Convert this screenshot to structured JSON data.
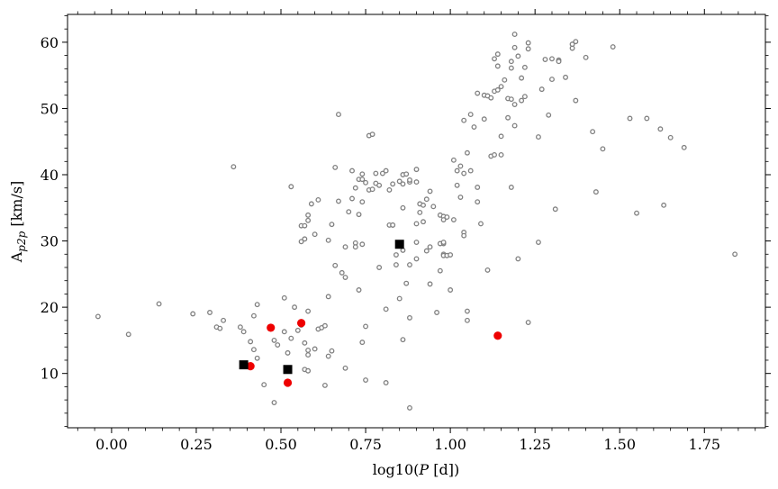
{
  "chart_data": {
    "type": "scatter",
    "xlabel_main": "log10(",
    "xlabel_var": "P",
    "xlabel_unit": " [d])",
    "ylabel_main": "A",
    "ylabel_sub": "p2p",
    "ylabel_unit": " [km/s]",
    "xlim": [
      -0.13,
      1.93
    ],
    "ylim": [
      1.8,
      64.2
    ],
    "x_ticks": [
      0.0,
      0.25,
      0.5,
      0.75,
      1.0,
      1.25,
      1.5,
      1.75
    ],
    "x_tick_labels": [
      "0.00",
      "0.25",
      "0.50",
      "0.75",
      "1.00",
      "1.25",
      "1.50",
      "1.75"
    ],
    "y_ticks": [
      10,
      20,
      30,
      40,
      50,
      60
    ],
    "y_tick_labels": [
      "10",
      "20",
      "30",
      "40",
      "50",
      "60"
    ],
    "grid": false,
    "legend": "none",
    "colors": {
      "open": "#808080",
      "red": "#ee0000",
      "black": "#000000"
    },
    "series": [
      {
        "marker": "open-circle",
        "points": [
          [
            -0.04,
            18.6
          ],
          [
            0.05,
            15.9
          ],
          [
            0.14,
            20.5
          ],
          [
            0.24,
            19.0
          ],
          [
            0.29,
            19.2
          ],
          [
            0.31,
            17.0
          ],
          [
            0.32,
            16.8
          ],
          [
            0.33,
            18.0
          ],
          [
            0.36,
            41.2
          ],
          [
            0.38,
            17.0
          ],
          [
            0.39,
            16.3
          ],
          [
            0.41,
            14.8
          ],
          [
            0.42,
            18.7
          ],
          [
            0.42,
            13.6
          ],
          [
            0.43,
            20.4
          ],
          [
            0.43,
            12.3
          ],
          [
            0.45,
            8.3
          ],
          [
            0.48,
            15.0
          ],
          [
            0.48,
            5.6
          ],
          [
            0.49,
            14.3
          ],
          [
            0.51,
            21.4
          ],
          [
            0.51,
            16.3
          ],
          [
            0.52,
            13.1
          ],
          [
            0.53,
            15.3
          ],
          [
            0.53,
            38.2
          ],
          [
            0.54,
            20.0
          ],
          [
            0.55,
            16.5
          ],
          [
            0.56,
            17.3
          ],
          [
            0.56,
            29.9
          ],
          [
            0.56,
            32.3
          ],
          [
            0.57,
            32.3
          ],
          [
            0.57,
            30.3
          ],
          [
            0.57,
            14.6
          ],
          [
            0.57,
            10.6
          ],
          [
            0.58,
            33.9
          ],
          [
            0.58,
            33.1
          ],
          [
            0.58,
            19.4
          ],
          [
            0.58,
            13.5
          ],
          [
            0.58,
            12.8
          ],
          [
            0.58,
            10.4
          ],
          [
            0.59,
            35.6
          ],
          [
            0.6,
            31.0
          ],
          [
            0.6,
            13.7
          ],
          [
            0.61,
            36.2
          ],
          [
            0.61,
            16.7
          ],
          [
            0.62,
            16.9
          ],
          [
            0.63,
            17.2
          ],
          [
            0.63,
            8.2
          ],
          [
            0.64,
            30.1
          ],
          [
            0.64,
            21.6
          ],
          [
            0.64,
            12.6
          ],
          [
            0.65,
            32.5
          ],
          [
            0.65,
            13.4
          ],
          [
            0.66,
            26.3
          ],
          [
            0.66,
            41.1
          ],
          [
            0.67,
            49.1
          ],
          [
            0.67,
            36.0
          ],
          [
            0.68,
            25.2
          ],
          [
            0.69,
            29.1
          ],
          [
            0.69,
            24.5
          ],
          [
            0.69,
            10.8
          ],
          [
            0.7,
            34.4
          ],
          [
            0.71,
            40.6
          ],
          [
            0.71,
            36.4
          ],
          [
            0.72,
            38.0
          ],
          [
            0.72,
            29.7
          ],
          [
            0.72,
            29.1
          ],
          [
            0.73,
            39.3
          ],
          [
            0.73,
            34.0
          ],
          [
            0.73,
            22.6
          ],
          [
            0.74,
            39.3
          ],
          [
            0.74,
            40.1
          ],
          [
            0.74,
            35.9
          ],
          [
            0.74,
            29.5
          ],
          [
            0.74,
            14.7
          ],
          [
            0.75,
            38.8
          ],
          [
            0.75,
            17.1
          ],
          [
            0.75,
            9.0
          ],
          [
            0.76,
            45.9
          ],
          [
            0.76,
            37.7
          ],
          [
            0.77,
            46.1
          ],
          [
            0.77,
            37.8
          ],
          [
            0.78,
            40.2
          ],
          [
            0.78,
            38.7
          ],
          [
            0.79,
            38.4
          ],
          [
            0.79,
            26.0
          ],
          [
            0.8,
            40.2
          ],
          [
            0.81,
            40.6
          ],
          [
            0.81,
            19.7
          ],
          [
            0.81,
            8.6
          ],
          [
            0.82,
            37.7
          ],
          [
            0.82,
            32.4
          ],
          [
            0.83,
            32.4
          ],
          [
            0.83,
            38.6
          ],
          [
            0.83,
            32.4
          ],
          [
            0.84,
            26.4
          ],
          [
            0.84,
            27.9
          ],
          [
            0.85,
            21.3
          ],
          [
            0.85,
            39.0
          ],
          [
            0.86,
            40.0
          ],
          [
            0.86,
            38.6
          ],
          [
            0.86,
            35.0
          ],
          [
            0.86,
            15.1
          ],
          [
            0.86,
            28.6
          ],
          [
            0.87,
            23.6
          ],
          [
            0.87,
            40.1
          ],
          [
            0.88,
            38.9
          ],
          [
            0.88,
            39.2
          ],
          [
            0.88,
            26.4
          ],
          [
            0.88,
            18.4
          ],
          [
            0.88,
            4.8
          ],
          [
            0.9,
            40.8
          ],
          [
            0.9,
            38.9
          ],
          [
            0.9,
            32.6
          ],
          [
            0.9,
            29.8
          ],
          [
            0.9,
            27.3
          ],
          [
            0.91,
            35.6
          ],
          [
            0.91,
            34.3
          ],
          [
            0.92,
            35.4
          ],
          [
            0.92,
            32.9
          ],
          [
            0.93,
            36.3
          ],
          [
            0.93,
            28.5
          ],
          [
            0.94,
            37.5
          ],
          [
            0.94,
            29.1
          ],
          [
            0.94,
            23.5
          ],
          [
            0.95,
            35.2
          ],
          [
            0.96,
            19.2
          ],
          [
            0.97,
            25.5
          ],
          [
            0.97,
            29.6
          ],
          [
            0.97,
            33.9
          ],
          [
            0.98,
            29.6
          ],
          [
            0.98,
            29.8
          ],
          [
            0.98,
            28.0
          ],
          [
            0.98,
            33.7
          ],
          [
            0.98,
            33.2
          ],
          [
            0.98,
            27.8
          ],
          [
            0.99,
            33.6
          ],
          [
            0.99,
            27.8
          ],
          [
            1.0,
            22.6
          ],
          [
            1.0,
            27.9
          ],
          [
            1.01,
            33.2
          ],
          [
            1.01,
            42.2
          ],
          [
            1.02,
            40.6
          ],
          [
            1.02,
            38.4
          ],
          [
            1.03,
            41.3
          ],
          [
            1.03,
            36.6
          ],
          [
            1.04,
            31.3
          ],
          [
            1.04,
            30.8
          ],
          [
            1.04,
            40.2
          ],
          [
            1.04,
            48.2
          ],
          [
            1.05,
            43.3
          ],
          [
            1.05,
            19.4
          ],
          [
            1.05,
            18.0
          ],
          [
            1.06,
            40.6
          ],
          [
            1.06,
            49.1
          ],
          [
            1.07,
            47.2
          ],
          [
            1.08,
            35.9
          ],
          [
            1.08,
            38.1
          ],
          [
            1.08,
            52.3
          ],
          [
            1.09,
            32.6
          ],
          [
            1.1,
            52.0
          ],
          [
            1.1,
            48.4
          ],
          [
            1.11,
            51.9
          ],
          [
            1.11,
            25.6
          ],
          [
            1.12,
            51.6
          ],
          [
            1.12,
            42.8
          ],
          [
            1.13,
            52.6
          ],
          [
            1.13,
            43.0
          ],
          [
            1.13,
            57.5
          ],
          [
            1.14,
            58.2
          ],
          [
            1.14,
            56.4
          ],
          [
            1.14,
            52.8
          ],
          [
            1.15,
            53.3
          ],
          [
            1.15,
            43.0
          ],
          [
            1.15,
            45.8
          ],
          [
            1.16,
            54.3
          ],
          [
            1.17,
            51.5
          ],
          [
            1.17,
            48.6
          ],
          [
            1.18,
            57.1
          ],
          [
            1.18,
            56.1
          ],
          [
            1.18,
            51.4
          ],
          [
            1.18,
            38.1
          ],
          [
            1.19,
            47.4
          ],
          [
            1.19,
            50.6
          ],
          [
            1.19,
            59.2
          ],
          [
            1.19,
            61.2
          ],
          [
            1.2,
            57.9
          ],
          [
            1.2,
            27.3
          ],
          [
            1.21,
            54.6
          ],
          [
            1.21,
            51.2
          ],
          [
            1.22,
            56.2
          ],
          [
            1.22,
            51.8
          ],
          [
            1.23,
            59.9
          ],
          [
            1.23,
            59.0
          ],
          [
            1.23,
            17.7
          ],
          [
            1.26,
            45.7
          ],
          [
            1.26,
            29.8
          ],
          [
            1.27,
            52.9
          ],
          [
            1.28,
            57.4
          ],
          [
            1.29,
            49.0
          ],
          [
            1.3,
            57.5
          ],
          [
            1.3,
            54.4
          ],
          [
            1.31,
            34.8
          ],
          [
            1.32,
            57.3
          ],
          [
            1.32,
            57.1
          ],
          [
            1.34,
            54.7
          ],
          [
            1.36,
            59.1
          ],
          [
            1.36,
            59.7
          ],
          [
            1.37,
            60.1
          ],
          [
            1.37,
            51.2
          ],
          [
            1.4,
            57.7
          ],
          [
            1.42,
            46.5
          ],
          [
            1.43,
            37.4
          ],
          [
            1.45,
            43.9
          ],
          [
            1.48,
            59.3
          ],
          [
            1.53,
            48.5
          ],
          [
            1.55,
            34.2
          ],
          [
            1.58,
            48.5
          ],
          [
            1.62,
            46.9
          ],
          [
            1.63,
            35.4
          ],
          [
            1.65,
            45.6
          ],
          [
            1.69,
            44.1
          ],
          [
            1.84,
            28.0
          ]
        ]
      },
      {
        "marker": "red-circle",
        "points": [
          [
            0.41,
            11.1
          ],
          [
            0.47,
            16.9
          ],
          [
            0.52,
            8.6
          ],
          [
            0.56,
            17.6
          ],
          [
            1.14,
            15.7
          ]
        ]
      },
      {
        "marker": "black-square",
        "points": [
          [
            0.39,
            11.3
          ],
          [
            0.52,
            10.6
          ],
          [
            0.85,
            29.5
          ]
        ]
      }
    ]
  }
}
